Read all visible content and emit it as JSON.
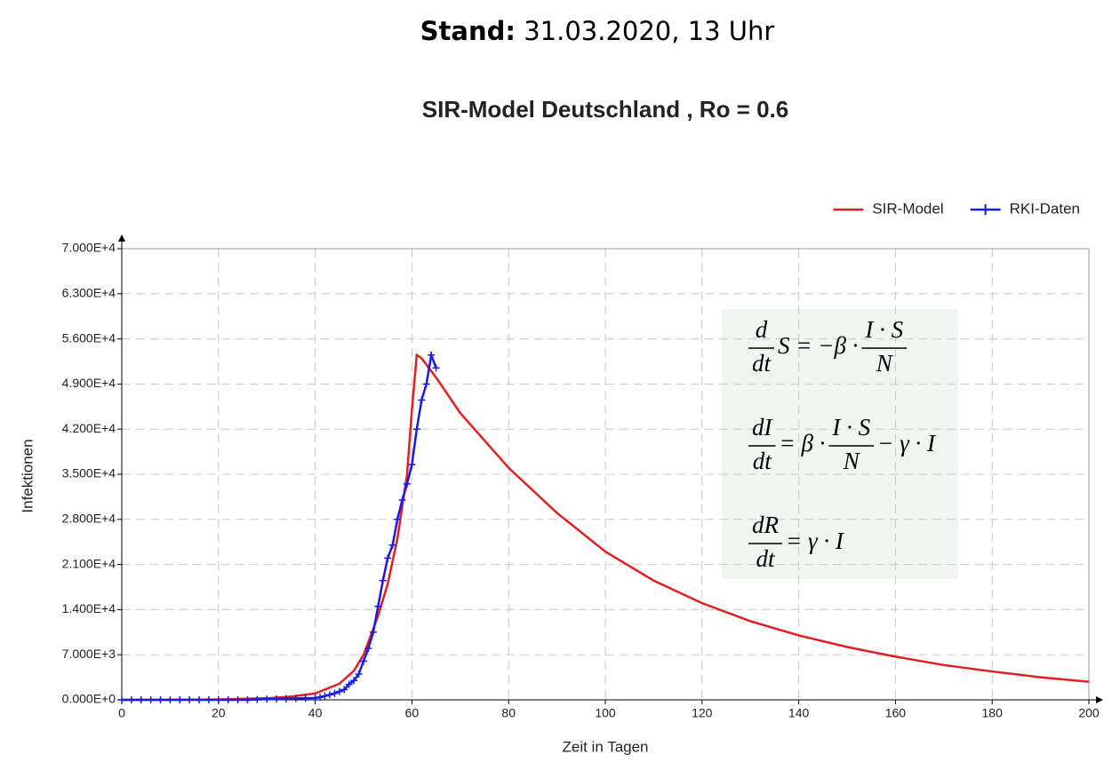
{
  "header": {
    "label": "Stand:",
    "value": "31.03.2020, 13 Uhr"
  },
  "chart_data": {
    "type": "line",
    "title": "SIR-Model Deutschland , Ro = 0.6",
    "x_label": "Zeit in Tagen",
    "y_label": "Infektionen",
    "xlim": [
      0,
      200
    ],
    "xticks": [
      0,
      20,
      40,
      60,
      80,
      100,
      120,
      140,
      160,
      180,
      200
    ],
    "ylim": [
      0,
      70000
    ],
    "yticks": [
      {
        "value": 0,
        "label": "0.000E+0"
      },
      {
        "value": 7000,
        "label": "7.000E+3"
      },
      {
        "value": 14000,
        "label": "1.400E+4"
      },
      {
        "value": 21000,
        "label": "2.100E+4"
      },
      {
        "value": 28000,
        "label": "2.800E+4"
      },
      {
        "value": 35000,
        "label": "3.500E+4"
      },
      {
        "value": 42000,
        "label": "4.200E+4"
      },
      {
        "value": 49000,
        "label": "4.900E+4"
      },
      {
        "value": 56000,
        "label": "5.600E+4"
      },
      {
        "value": 63000,
        "label": "6.300E+4"
      },
      {
        "value": 70000,
        "label": "7.000E+4"
      }
    ],
    "grid": true,
    "legend": "top-right",
    "series": [
      {
        "name": "SIR-Model",
        "color": "#e02020",
        "marker": "none",
        "x": [
          0,
          10,
          20,
          30,
          35,
          40,
          45,
          48,
          50,
          53,
          55,
          57,
          59,
          60,
          61,
          62,
          65,
          70,
          80,
          90,
          100,
          110,
          120,
          130,
          140,
          150,
          160,
          170,
          180,
          190,
          200
        ],
        "values": [
          0,
          10,
          50,
          250,
          500,
          1000,
          2500,
          4500,
          7000,
          13000,
          18000,
          25000,
          35000,
          45000,
          53500,
          53000,
          50000,
          44500,
          36000,
          29000,
          23000,
          18500,
          15000,
          12200,
          10000,
          8200,
          6700,
          5400,
          4400,
          3500,
          2800
        ]
      },
      {
        "name": "RKI-Daten",
        "color": "#1a1ae6",
        "marker": "plus",
        "x": [
          0,
          2,
          4,
          6,
          8,
          10,
          12,
          14,
          16,
          18,
          20,
          22,
          24,
          26,
          28,
          30,
          32,
          34,
          36,
          38,
          40,
          41,
          42,
          43,
          44,
          45,
          46,
          47,
          48,
          49,
          50,
          51,
          52,
          53,
          54,
          55,
          56,
          57,
          58,
          59,
          60,
          61,
          62,
          63,
          64,
          65
        ],
        "values": [
          0,
          0,
          0,
          0,
          0,
          0,
          0,
          0,
          0,
          0,
          0,
          0,
          0,
          0,
          50,
          100,
          130,
          170,
          220,
          260,
          300,
          400,
          600,
          800,
          1000,
          1300,
          1600,
          2400,
          3000,
          4000,
          6000,
          8000,
          10500,
          14500,
          18500,
          22000,
          24000,
          28000,
          31000,
          33500,
          36500,
          42000,
          46500,
          49000,
          53500,
          51500
        ]
      }
    ],
    "annotations": [
      [
        {
          "num": "d",
          "den": "dt"
        },
        {
          "text": "S = −β ·"
        },
        {
          "num": "I · S",
          "den": "N"
        }
      ],
      [
        {
          "num": "dI",
          "den": "dt"
        },
        {
          "text": "= β ·"
        },
        {
          "num": "I · S",
          "den": "N"
        },
        {
          "text": "− γ · I"
        }
      ],
      [
        {
          "num": "dR",
          "den": "dt"
        },
        {
          "text": "= γ · I"
        }
      ]
    ]
  }
}
